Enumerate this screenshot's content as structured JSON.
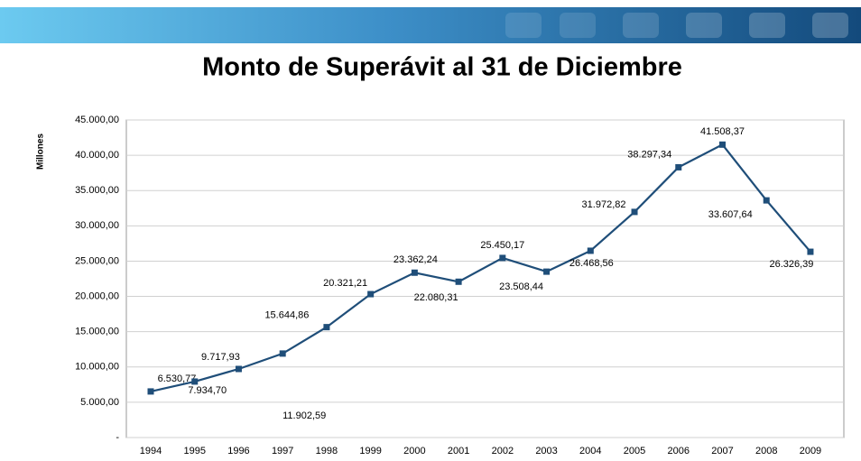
{
  "chart_data": {
    "type": "line",
    "title": "Monto de Superávit al 31 de Diciembre",
    "y_label": "Millones",
    "categories": [
      "1994",
      "1995",
      "1996",
      "1997",
      "1998",
      "1999",
      "2000",
      "2001",
      "2002",
      "2003",
      "2004",
      "2005",
      "2006",
      "2007",
      "2008",
      "2009"
    ],
    "series": [
      {
        "name": "Superávit",
        "color": "#1f4e79",
        "values": [
          6530.77,
          7934.7,
          9717.93,
          11902.59,
          15644.86,
          20321.21,
          23362.24,
          22080.31,
          25450.17,
          23508.44,
          26468.56,
          31972.82,
          38297.34,
          41508.37,
          33607.64,
          26326.39
        ],
        "value_labels": [
          "6.530,77",
          "7.934,70",
          "9.717,93",
          "11.902,59",
          "15.644,86",
          "20.321,21",
          "23.362,24",
          "22.080,31",
          "25.450,17",
          "23.508,44",
          "26.468,56",
          "31.972,82",
          "38.297,34",
          "41.508,37",
          "33.607,64",
          "26.326,39"
        ]
      }
    ],
    "ylim": [
      0,
      45000
    ],
    "yticks": [
      {
        "value": 0,
        "label": "-"
      },
      {
        "value": 5000,
        "label": "5.000,00"
      },
      {
        "value": 10000,
        "label": "10.000,00"
      },
      {
        "value": 15000,
        "label": "15.000,00"
      },
      {
        "value": 20000,
        "label": "20.000,00"
      },
      {
        "value": 25000,
        "label": "25.000,00"
      },
      {
        "value": 30000,
        "label": "30.000,00"
      },
      {
        "value": 35000,
        "label": "35.000,00"
      },
      {
        "value": 40000,
        "label": "40.000,00"
      },
      {
        "value": 45000,
        "label": "45.000,00"
      }
    ],
    "grid": true
  }
}
